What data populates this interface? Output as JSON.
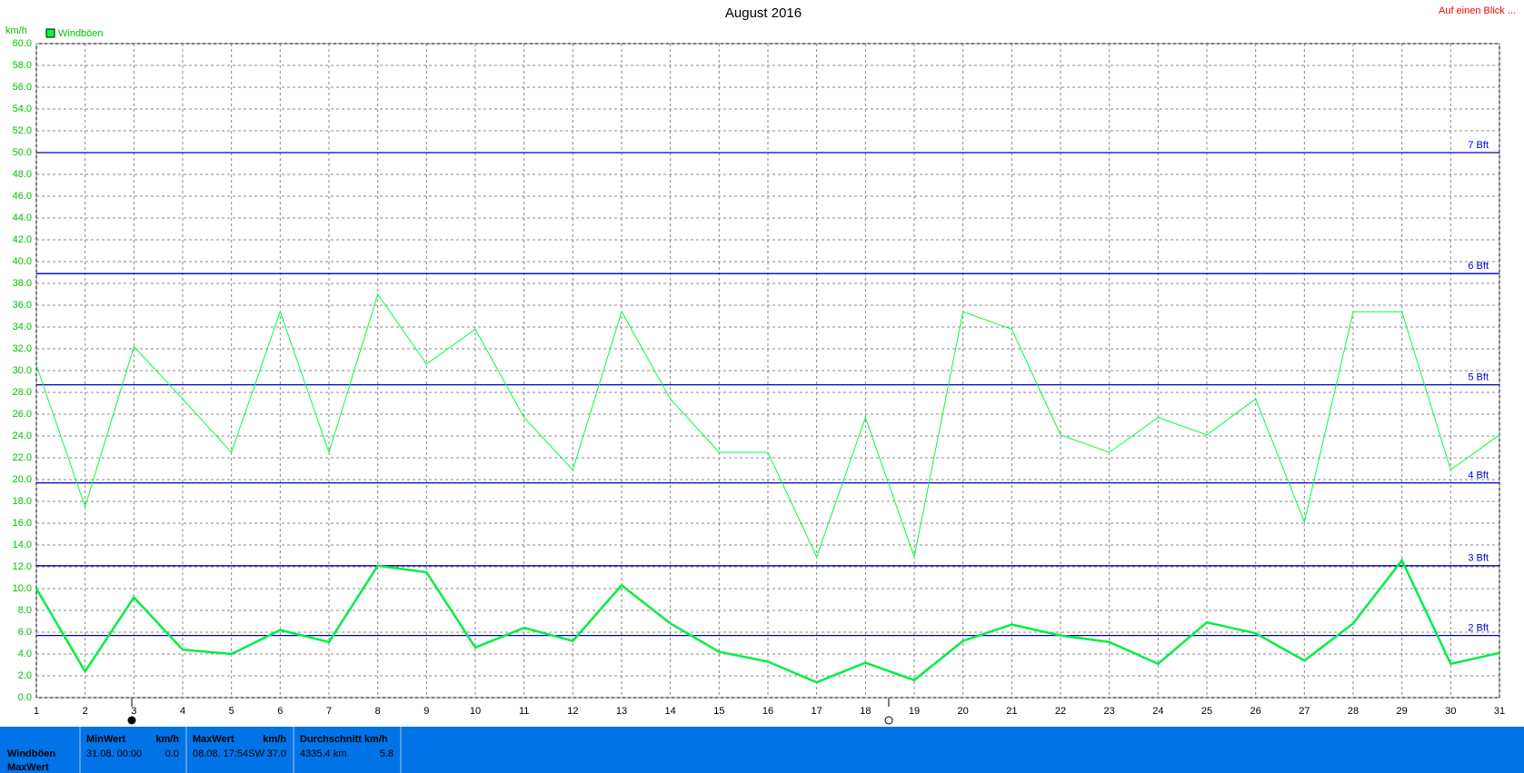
{
  "chart_data": {
    "type": "line",
    "title": "August 2016",
    "link": "Auf einen Blick ...",
    "y_label": "km/h",
    "x": [
      1,
      2,
      3,
      4,
      5,
      6,
      7,
      8,
      9,
      10,
      11,
      12,
      13,
      14,
      15,
      16,
      17,
      18,
      19,
      20,
      21,
      22,
      23,
      24,
      25,
      26,
      27,
      28,
      29,
      30,
      31
    ],
    "xlim": [
      1,
      31
    ],
    "xticks": [
      1,
      2,
      3,
      4,
      5,
      6,
      7,
      8,
      9,
      10,
      11,
      12,
      13,
      14,
      15,
      16,
      17,
      18,
      19,
      20,
      21,
      22,
      23,
      24,
      25,
      26,
      27,
      28,
      29,
      30,
      31
    ],
    "ylim": [
      0,
      60
    ],
    "yticks": [
      {
        "value": 0,
        "label": "0.0"
      },
      {
        "value": 2,
        "label": "2.0"
      },
      {
        "value": 4,
        "label": "4.0"
      },
      {
        "value": 6,
        "label": "6.0"
      },
      {
        "value": 8,
        "label": "8.0"
      },
      {
        "value": 10,
        "label": "10.0"
      },
      {
        "value": 12,
        "label": "12.0"
      },
      {
        "value": 14,
        "label": "14.0"
      },
      {
        "value": 16,
        "label": "16.0"
      },
      {
        "value": 18,
        "label": "18.0"
      },
      {
        "value": 20,
        "label": "20.0"
      },
      {
        "value": 22,
        "label": "22.0"
      },
      {
        "value": 24,
        "label": "24.0"
      },
      {
        "value": 26,
        "label": "26.0"
      },
      {
        "value": 28,
        "label": "28.0"
      },
      {
        "value": 30,
        "label": "30.0"
      },
      {
        "value": 32,
        "label": "32.0"
      },
      {
        "value": 34,
        "label": "34.0"
      },
      {
        "value": 36,
        "label": "36.0"
      },
      {
        "value": 38,
        "label": "38.0"
      },
      {
        "value": 40,
        "label": "40.0"
      },
      {
        "value": 42,
        "label": "42.0"
      },
      {
        "value": 44,
        "label": "44.0"
      },
      {
        "value": 46,
        "label": "46.0"
      },
      {
        "value": 48,
        "label": "48.0"
      },
      {
        "value": 50,
        "label": "50.0"
      },
      {
        "value": 52,
        "label": "52.0"
      },
      {
        "value": 54,
        "label": "54.0"
      },
      {
        "value": 56,
        "label": "56.0"
      },
      {
        "value": 58,
        "label": "58.0"
      },
      {
        "value": 60,
        "label": "60.0"
      }
    ],
    "grid": true,
    "series": [
      {
        "name": "Windböen",
        "color": "#00ff40",
        "line_width": 1,
        "values": [
          30.5,
          17.5,
          32.2,
          27.4,
          22.5,
          35.4,
          22.5,
          37.0,
          30.6,
          33.8,
          25.7,
          20.9,
          35.4,
          27.4,
          22.5,
          22.5,
          12.9,
          25.7,
          12.9,
          35.4,
          33.8,
          24.1,
          22.5,
          25.7,
          24.1,
          27.4,
          16.1,
          35.4,
          35.4,
          20.9,
          24.1
        ]
      },
      {
        "color": "#00ee44",
        "line_width": 2.5,
        "values": [
          10.0,
          2.4,
          9.2,
          4.4,
          4.0,
          6.2,
          5.1,
          12.1,
          11.5,
          4.6,
          6.4,
          5.2,
          10.3,
          6.8,
          4.2,
          3.3,
          1.4,
          3.2,
          1.6,
          5.2,
          6.7,
          5.7,
          5.1,
          3.1,
          6.9,
          5.9,
          3.4,
          6.8,
          12.6,
          3.1,
          4.1
        ]
      }
    ],
    "reference_lines": [
      {
        "value": 50.0,
        "label": "7 Bft"
      },
      {
        "value": 38.9,
        "label": "6 Bft"
      },
      {
        "value": 28.7,
        "label": "5 Bft"
      },
      {
        "value": 19.7,
        "label": "4 Bft"
      },
      {
        "value": 12.1,
        "label": "3 Bft"
      },
      {
        "value": 5.7,
        "label": "2 Bft"
      }
    ],
    "reference_color": "#0000cc"
  },
  "summary": {
    "row_labels": [
      "Windböen",
      "MaxWert"
    ],
    "columns": [
      {
        "header": "MinWert",
        "unit": "km/h",
        "cells": [
          "31.08.  00:00",
          "0.0"
        ]
      },
      {
        "header": "MaxWert",
        "unit": "km/h",
        "cells": [
          "08.08.  17:54",
          "SW",
          "37.0"
        ]
      },
      {
        "header": "Durchschnitt km/h",
        "cells": [
          "4335.4 km",
          "5.8"
        ]
      }
    ]
  }
}
